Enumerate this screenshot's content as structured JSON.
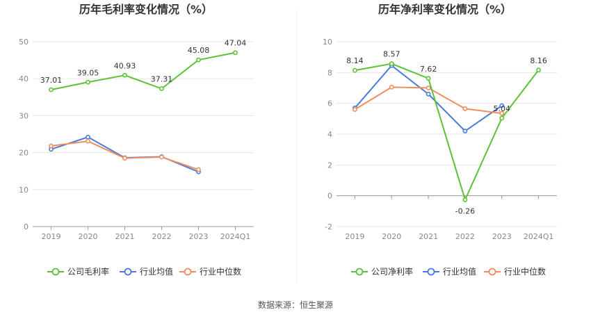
{
  "source": "数据来源：恒生聚源",
  "chart_data": [
    {
      "type": "line",
      "title": "历年毛利率变化情况（%）",
      "categories": [
        "2019",
        "2020",
        "2021",
        "2022",
        "2023",
        "2024Q1"
      ],
      "ylim": [
        0,
        50
      ],
      "yticks": [
        0,
        10,
        20,
        30,
        40,
        50
      ],
      "grid": true,
      "legend": "bottom",
      "series": [
        {
          "name": "公司毛利率",
          "color": "#5bc236",
          "values": [
            37.01,
            39.05,
            40.93,
            37.31,
            45.08,
            47.04
          ],
          "labels": [
            "37.01",
            "39.05",
            "40.93",
            "37.31",
            "45.08",
            "47.04"
          ]
        },
        {
          "name": "行业均值",
          "color": "#4a7bdc",
          "values": [
            20.9,
            24.2,
            18.6,
            18.9,
            14.8,
            null
          ]
        },
        {
          "name": "行业中位数",
          "color": "#ef8e5a",
          "values": [
            21.8,
            23.1,
            18.5,
            18.8,
            15.4,
            null
          ]
        }
      ]
    },
    {
      "type": "line",
      "title": "历年净利率变化情况（%）",
      "categories": [
        "2019",
        "2020",
        "2021",
        "2022",
        "2023",
        "2024Q1"
      ],
      "ylim": [
        -2,
        10
      ],
      "yticks": [
        -2,
        0,
        2,
        4,
        6,
        8,
        10
      ],
      "grid": true,
      "legend": "bottom",
      "series": [
        {
          "name": "公司净利率",
          "color": "#5bc236",
          "values": [
            8.14,
            8.57,
            7.62,
            -0.26,
            5.04,
            8.16
          ],
          "labels": [
            "8.14",
            "8.57",
            "7.62",
            "-0.26",
            "5.04",
            "8.16"
          ]
        },
        {
          "name": "行业均值",
          "color": "#4a7bdc",
          "values": [
            5.7,
            8.45,
            6.6,
            4.2,
            5.85,
            null
          ]
        },
        {
          "name": "行业中位数",
          "color": "#ef8e5a",
          "values": [
            5.6,
            7.05,
            7.0,
            5.65,
            5.35,
            null
          ]
        }
      ]
    }
  ]
}
